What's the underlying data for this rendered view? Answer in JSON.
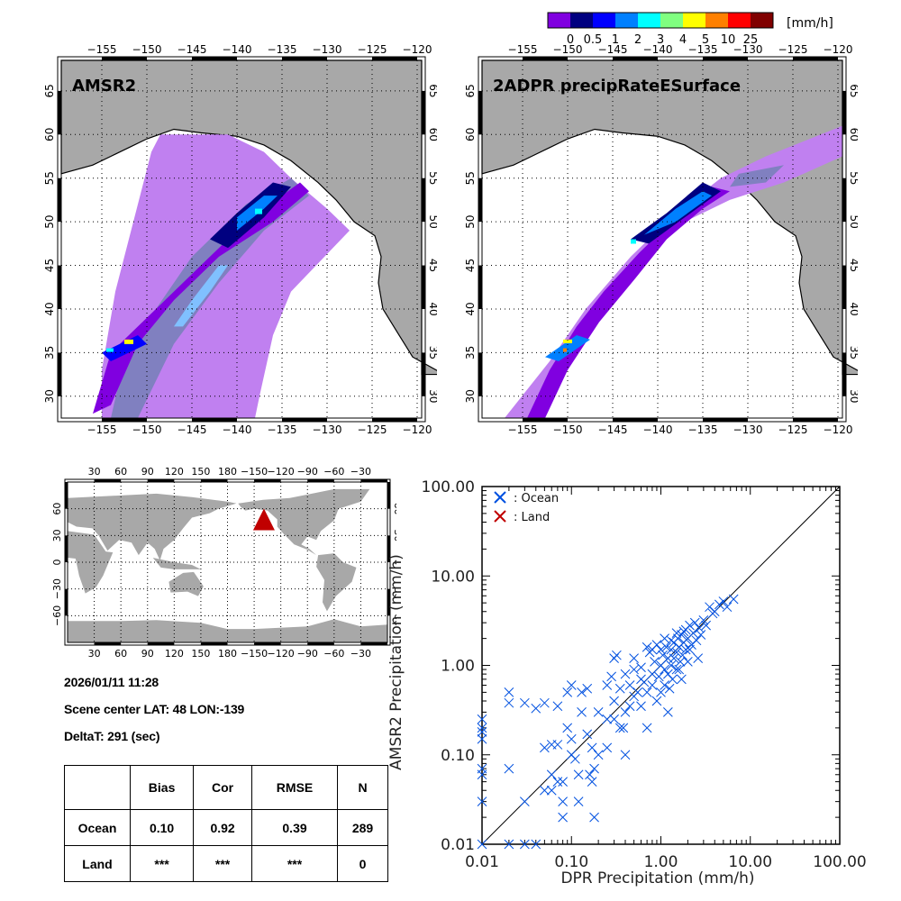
{
  "colorbar": {
    "unit": "[mm/h]",
    "colors": [
      "#8000e0",
      "#000080",
      "#0000ff",
      "#0080ff",
      "#00ffff",
      "#80ff80",
      "#ffff00",
      "#ff8000",
      "#ff0000",
      "#800000"
    ],
    "labels": [
      "0",
      "0.5",
      "1",
      "2",
      "3",
      "4",
      "5",
      "10",
      "25"
    ]
  },
  "maps": [
    {
      "title": "AMSR2",
      "lon_ticks": [
        "−155",
        "−150",
        "−145",
        "−140",
        "−135",
        "−130",
        "−125",
        "−120"
      ],
      "lat_ticks": [
        "65",
        "60",
        "55",
        "50",
        "45",
        "40",
        "35",
        "30"
      ]
    },
    {
      "title": "2ADPR precipRateESurface",
      "lon_ticks": [
        "−155",
        "−150",
        "−145",
        "−140",
        "−135",
        "−130",
        "−125",
        "−120"
      ],
      "lat_ticks": [
        "65",
        "60",
        "55",
        "50",
        "45",
        "40",
        "35",
        "30"
      ]
    }
  ],
  "world_map": {
    "lon_ticks": [
      "30",
      "60",
      "90",
      "120",
      "150",
      "180",
      "−150",
      "−120",
      "−90",
      "−60",
      "−30"
    ],
    "lat_ticks": [
      "60",
      "30",
      "0",
      "−30",
      "−60"
    ],
    "marker_color": "#c00000",
    "marker_label": "scene-center"
  },
  "info": {
    "datetime": "2026/01/11 11:28",
    "scene_center": "Scene center LAT: 48   LON:-139",
    "delta_t": "DeltaT:  291 (sec)"
  },
  "stats_table": {
    "headers": [
      "",
      "Bias",
      "Cor",
      "RMSE",
      "N"
    ],
    "rows": [
      {
        "label": "Ocean",
        "values": [
          "0.10",
          "0.92",
          "0.39",
          "289"
        ]
      },
      {
        "label": "Land",
        "values": [
          "***",
          "***",
          "***",
          "0"
        ]
      }
    ]
  },
  "chart_data": {
    "type": "scatter",
    "title": "",
    "xlabel": "DPR Precipitation (mm/h)",
    "ylabel": "AMSR2 Precipitation (mm/h)",
    "xscale": "log",
    "yscale": "log",
    "xlim": [
      0.01,
      100
    ],
    "ylim": [
      0.01,
      100
    ],
    "x_tick_labels": [
      "0.01",
      "0.10",
      "1.00",
      "10.00",
      "100.00"
    ],
    "y_tick_labels": [
      "0.01",
      "0.10",
      "1.00",
      "10.00",
      "100.00"
    ],
    "reference_line": "1:1",
    "legend": [
      {
        "label": ": Ocean",
        "color": "#0050e0"
      },
      {
        "label": ": Land",
        "color": "#c00000"
      }
    ],
    "legend_position": "top-left",
    "series": [
      {
        "name": "Ocean",
        "color": "#0050e0",
        "points": [
          [
            0.01,
            0.01
          ],
          [
            0.02,
            0.01
          ],
          [
            0.03,
            0.01
          ],
          [
            0.04,
            0.01
          ],
          [
            0.01,
            0.03
          ],
          [
            0.01,
            0.06
          ],
          [
            0.01,
            0.07
          ],
          [
            0.01,
            0.15
          ],
          [
            0.01,
            0.2
          ],
          [
            0.01,
            0.25
          ],
          [
            0.01,
            0.18
          ],
          [
            0.02,
            0.38
          ],
          [
            0.02,
            0.5
          ],
          [
            0.02,
            0.07
          ],
          [
            0.03,
            0.38
          ],
          [
            0.03,
            0.03
          ],
          [
            0.04,
            0.33
          ],
          [
            0.05,
            0.38
          ],
          [
            0.05,
            0.12
          ],
          [
            0.05,
            0.04
          ],
          [
            0.06,
            0.13
          ],
          [
            0.06,
            0.06
          ],
          [
            0.06,
            0.04
          ],
          [
            0.07,
            0.35
          ],
          [
            0.07,
            0.13
          ],
          [
            0.07,
            0.05
          ],
          [
            0.08,
            0.02
          ],
          [
            0.08,
            0.03
          ],
          [
            0.08,
            0.05
          ],
          [
            0.09,
            0.5
          ],
          [
            0.09,
            0.2
          ],
          [
            0.1,
            0.6
          ],
          [
            0.1,
            0.15
          ],
          [
            0.1,
            0.1
          ],
          [
            0.11,
            0.09
          ],
          [
            0.12,
            0.06
          ],
          [
            0.12,
            0.03
          ],
          [
            0.13,
            0.5
          ],
          [
            0.13,
            0.3
          ],
          [
            0.15,
            0.55
          ],
          [
            0.15,
            0.17
          ],
          [
            0.16,
            0.06
          ],
          [
            0.17,
            0.05
          ],
          [
            0.17,
            0.12
          ],
          [
            0.18,
            0.02
          ],
          [
            0.18,
            0.07
          ],
          [
            0.2,
            0.3
          ],
          [
            0.2,
            0.1
          ],
          [
            0.25,
            0.6
          ],
          [
            0.25,
            0.12
          ],
          [
            0.28,
            0.75
          ],
          [
            0.3,
            0.4
          ],
          [
            0.3,
            1.2
          ],
          [
            0.32,
            1.3
          ],
          [
            0.35,
            0.55
          ],
          [
            0.38,
            0.2
          ],
          [
            0.4,
            0.3
          ],
          [
            0.4,
            0.1
          ],
          [
            0.45,
            0.6
          ],
          [
            0.45,
            0.35
          ],
          [
            0.5,
            0.45
          ],
          [
            0.5,
            0.9
          ],
          [
            0.55,
            0.5
          ],
          [
            0.6,
            0.95
          ],
          [
            0.6,
            0.35
          ],
          [
            0.65,
            0.65
          ],
          [
            0.7,
            0.5
          ],
          [
            0.7,
            0.2
          ],
          [
            0.75,
            1.4
          ],
          [
            0.8,
            0.8
          ],
          [
            0.8,
            0.6
          ],
          [
            0.85,
            1.1
          ],
          [
            0.9,
            0.4
          ],
          [
            0.95,
            0.75
          ],
          [
            1.0,
            1.0
          ],
          [
            1.0,
            0.5
          ],
          [
            1.05,
            1.3
          ],
          [
            1.1,
            0.9
          ],
          [
            1.1,
            0.6
          ],
          [
            1.15,
            1.6
          ],
          [
            1.2,
            1.2
          ],
          [
            1.2,
            0.8
          ],
          [
            1.25,
            0.55
          ],
          [
            1.3,
            1.5
          ],
          [
            1.3,
            1.0
          ],
          [
            1.35,
            0.7
          ],
          [
            1.4,
            1.8
          ],
          [
            1.4,
            1.2
          ],
          [
            1.5,
            1.4
          ],
          [
            1.5,
            0.9
          ],
          [
            1.55,
            2.0
          ],
          [
            1.6,
            1.6
          ],
          [
            1.65,
            1.1
          ],
          [
            1.7,
            2.2
          ],
          [
            1.75,
            1.3
          ],
          [
            1.8,
            1.8
          ],
          [
            1.9,
            2.5
          ],
          [
            1.9,
            1.5
          ],
          [
            2.0,
            2.0
          ],
          [
            2.0,
            1.1
          ],
          [
            2.1,
            2.8
          ],
          [
            2.2,
            1.7
          ],
          [
            2.3,
            2.3
          ],
          [
            2.4,
            3.0
          ],
          [
            2.5,
            1.9
          ],
          [
            2.6,
            1.2
          ],
          [
            2.7,
            2.6
          ],
          [
            3.0,
            3.2
          ],
          [
            3.2,
            2.8
          ],
          [
            3.5,
            4.5
          ],
          [
            3.8,
            3.8
          ],
          [
            4.0,
            4.0
          ],
          [
            4.5,
            4.8
          ],
          [
            5.0,
            5.2
          ],
          [
            5.5,
            4.5
          ],
          [
            6.5,
            5.5
          ],
          [
            0.8,
            1.5
          ],
          [
            1.1,
            2.0
          ],
          [
            0.9,
            1.7
          ],
          [
            1.3,
            1.9
          ],
          [
            1.5,
            2.3
          ],
          [
            1.6,
            0.9
          ],
          [
            1.7,
            0.7
          ],
          [
            2.1,
            1.5
          ],
          [
            0.6,
            0.7
          ],
          [
            1.0,
            1.5
          ],
          [
            0.7,
            1.6
          ],
          [
            0.5,
            1.2
          ],
          [
            0.4,
            0.8
          ],
          [
            1.8,
            2.4
          ],
          [
            2.8,
            2.2
          ],
          [
            1.2,
            0.3
          ],
          [
            0.3,
            0.25
          ],
          [
            0.25,
            0.25
          ],
          [
            0.35,
            0.2
          ]
        ]
      },
      {
        "name": "Land",
        "color": "#c00000",
        "points": []
      }
    ]
  }
}
